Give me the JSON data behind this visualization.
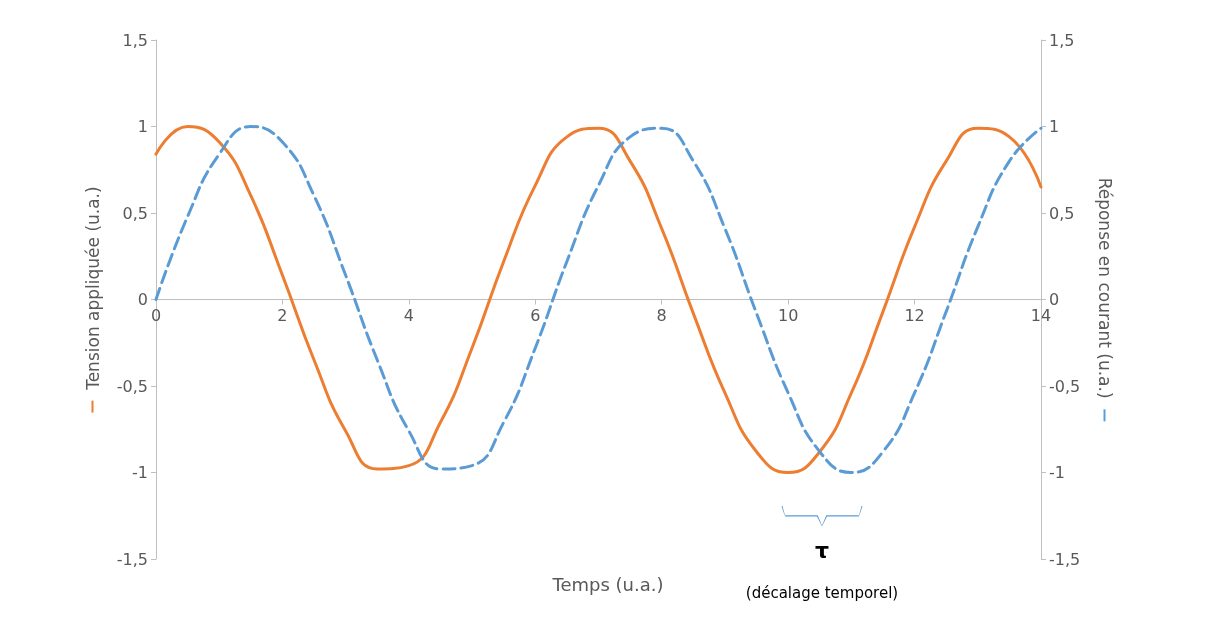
{
  "chart_data": {
    "type": "line",
    "xlabel": "Temps (u.a.)",
    "ylabel": "Tension appliquée (u.a.)",
    "y2label": "Réponse en courant (u.a.)",
    "series": [
      {
        "color": "#ed7d31",
        "line_style": "solid",
        "x": [
          0,
          0.5,
          1,
          1.5,
          2,
          2.5,
          3,
          3.5,
          4,
          4.5,
          5,
          5.5,
          6,
          6.5,
          7,
          7.5,
          8,
          8.5,
          9,
          9.5,
          10,
          10.5,
          11,
          11.5,
          12,
          12.5,
          13,
          13.5,
          14
        ],
        "values": [
          0.84,
          1.0,
          0.91,
          0.6,
          0.14,
          -0.35,
          -0.76,
          -0.98,
          -0.96,
          -0.71,
          -0.28,
          0.22,
          0.66,
          0.94,
          0.99,
          0.8,
          0.41,
          -0.08,
          -0.54,
          -0.88,
          -1.0,
          -0.88,
          -0.54,
          -0.07,
          0.42,
          0.8,
          0.99,
          0.94,
          0.65
        ]
      },
      {
        "color": "#5b9bd5",
        "line_style": "dashed",
        "axis": "y2",
        "x": [
          0,
          0.5,
          1,
          1.5,
          2,
          2.5,
          3,
          3.5,
          4,
          4.5,
          5,
          5.5,
          6,
          6.5,
          7,
          7.5,
          8,
          8.5,
          9,
          9.5,
          10,
          10.5,
          11,
          11.5,
          12,
          12.5,
          13,
          13.5,
          14
        ],
        "values": [
          0,
          0.48,
          0.84,
          1.0,
          0.91,
          0.6,
          0.14,
          -0.35,
          -0.76,
          -0.98,
          -0.96,
          -0.71,
          -0.28,
          0.22,
          0.66,
          0.94,
          0.99,
          0.8,
          0.41,
          -0.08,
          -0.54,
          -0.88,
          -1.0,
          -0.88,
          -0.54,
          -0.07,
          0.42,
          0.8,
          0.99
        ]
      }
    ],
    "xlim": [
      0,
      14
    ],
    "xticks": [
      0,
      2,
      4,
      6,
      8,
      10,
      12,
      14
    ],
    "ylim": [
      -1.5,
      1.5
    ],
    "yticks": [
      {
        "value": -1.5,
        "label": "-1,5"
      },
      -1,
      {
        "value": -0.5,
        "label": "-0,5"
      },
      0,
      {
        "value": 0.5,
        "label": "0,5"
      },
      1,
      {
        "value": 1.5,
        "label": "1,5"
      }
    ],
    "y2lim": [
      -1.5,
      1.5
    ],
    "y2ticks": [
      {
        "value": -1.5,
        "label": "-1,5"
      },
      -1,
      {
        "value": -0.5,
        "label": "-0,5"
      },
      0,
      {
        "value": 0.5,
        "label": "0,5"
      },
      1,
      {
        "value": 1.5,
        "label": "1,5"
      }
    ],
    "annotations": [
      "τ",
      "(décalage temporel)"
    ],
    "grid": false,
    "marker": "none"
  }
}
